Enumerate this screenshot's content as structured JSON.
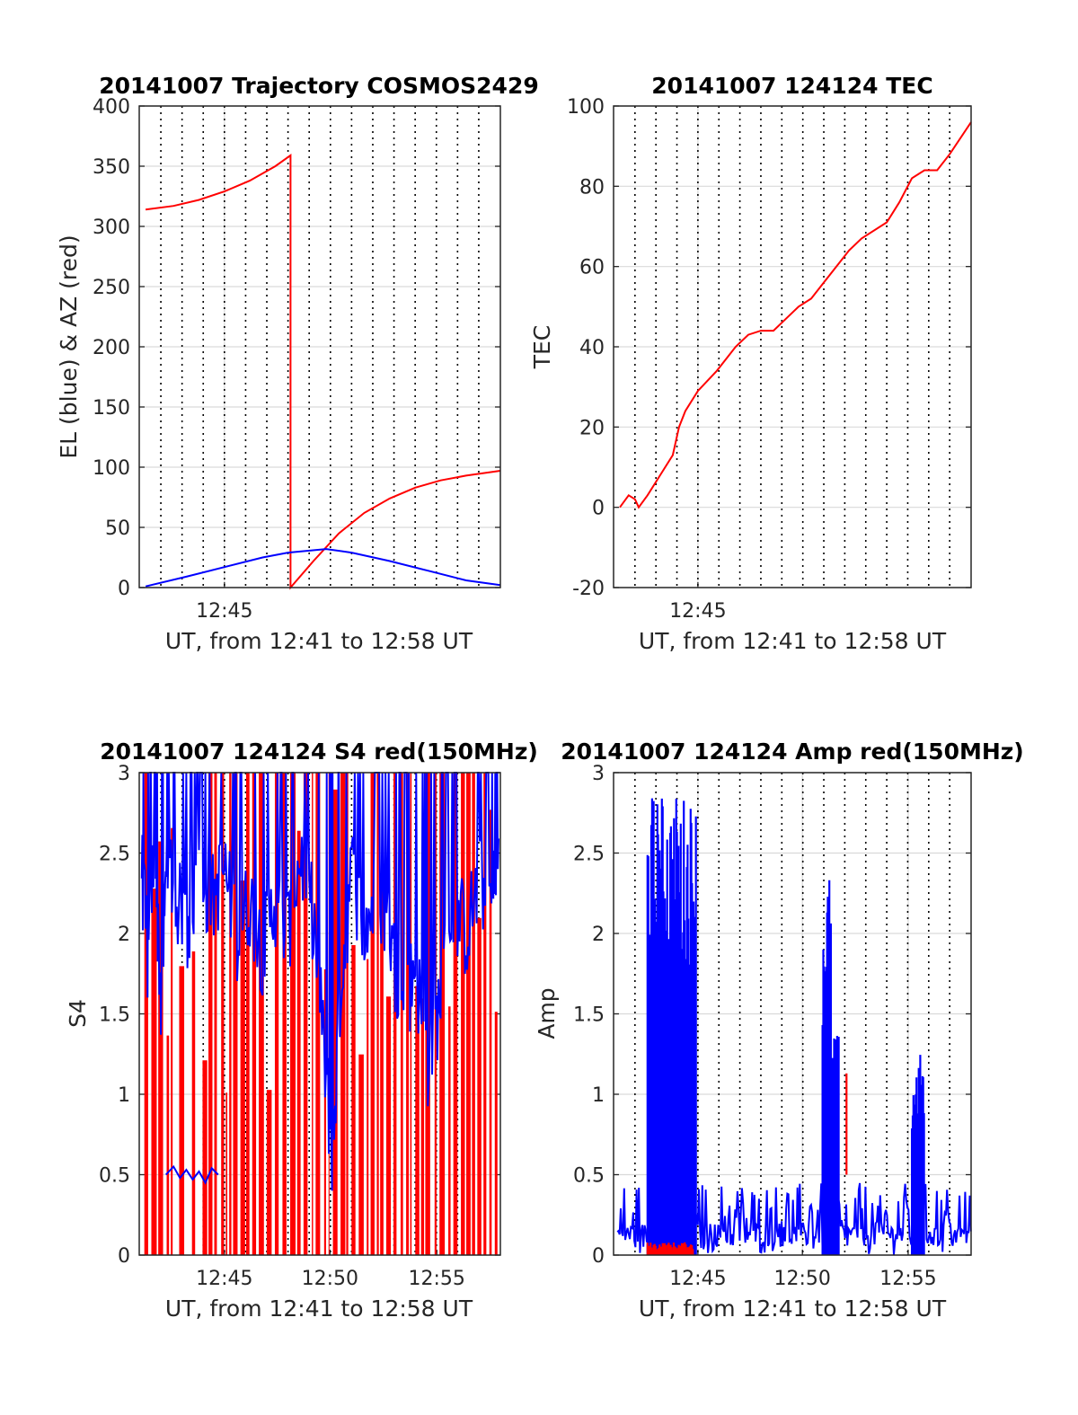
{
  "colors": {
    "red": "#ff0000",
    "blue": "#0000ff",
    "grid": "#d9d9d9",
    "axis": "#262626",
    "vline": "#000000"
  },
  "chart_data": [
    {
      "type": "line",
      "title": "20141007 Trajectory COSMOS2429",
      "ylabel": "EL (blue) & AZ (red)",
      "xlabel": "UT, from 12:41 to 12:58 UT",
      "xlim": [
        12.683,
        12.967
      ],
      "ylim": [
        0,
        400
      ],
      "yticks": [
        "0",
        "50",
        "100",
        "150",
        "200",
        "250",
        "300",
        "350",
        "400"
      ],
      "xticks": [
        {
          "t": 12.75,
          "label": "12:45"
        }
      ],
      "grid": true,
      "series": [
        {
          "color": "red",
          "points": [
            [
              12.688,
              314
            ],
            [
              12.71,
              317
            ],
            [
              12.73,
              322
            ],
            [
              12.75,
              329
            ],
            [
              12.77,
              338
            ],
            [
              12.79,
              350
            ],
            [
              12.802,
              359
            ],
            [
              12.802,
              0
            ],
            [
              12.82,
              22
            ],
            [
              12.84,
              45
            ],
            [
              12.86,
              62
            ],
            [
              12.88,
              74
            ],
            [
              12.9,
              83
            ],
            [
              12.92,
              89
            ],
            [
              12.94,
              93
            ],
            [
              12.967,
              97
            ]
          ]
        },
        {
          "color": "blue",
          "points": [
            [
              12.688,
              1
            ],
            [
              12.72,
              9
            ],
            [
              12.75,
              17
            ],
            [
              12.78,
              25
            ],
            [
              12.8,
              29
            ],
            [
              12.83,
              32
            ],
            [
              12.85,
              29
            ],
            [
              12.88,
              22
            ],
            [
              12.91,
              14
            ],
            [
              12.94,
              6
            ],
            [
              12.967,
              2
            ]
          ]
        }
      ]
    },
    {
      "type": "line",
      "title": "20141007 124124 TEC",
      "ylabel": "TEC",
      "xlabel": "UT, from 12:41 to 12:58 UT",
      "xlim": [
        12.683,
        12.967
      ],
      "ylim": [
        -20,
        100
      ],
      "yticks": [
        "-20",
        "0",
        "20",
        "40",
        "60",
        "80",
        "100"
      ],
      "xticks": [
        {
          "t": 12.75,
          "label": "12:45"
        }
      ],
      "grid": true,
      "series": [
        {
          "color": "red",
          "points": [
            [
              12.688,
              0
            ],
            [
              12.695,
              3
            ],
            [
              12.7,
              2
            ],
            [
              12.703,
              0
            ],
            [
              12.71,
              3
            ],
            [
              12.72,
              8
            ],
            [
              12.73,
              13
            ],
            [
              12.735,
              20
            ],
            [
              12.74,
              24
            ],
            [
              12.75,
              29
            ],
            [
              12.765,
              34
            ],
            [
              12.78,
              40
            ],
            [
              12.79,
              43
            ],
            [
              12.8,
              44
            ],
            [
              12.81,
              44
            ],
            [
              12.82,
              47
            ],
            [
              12.83,
              50
            ],
            [
              12.84,
              52
            ],
            [
              12.85,
              56
            ],
            [
              12.86,
              60
            ],
            [
              12.87,
              64
            ],
            [
              12.88,
              67
            ],
            [
              12.9,
              71
            ],
            [
              12.91,
              76
            ],
            [
              12.92,
              82
            ],
            [
              12.93,
              84
            ],
            [
              12.94,
              84
            ],
            [
              12.95,
              88
            ],
            [
              12.967,
              96
            ]
          ]
        }
      ]
    },
    {
      "type": "line",
      "title": "20141007 124124 S4 red(150MHz)",
      "ylabel": "S4",
      "xlabel": "UT, from 12:41 to 12:58 UT",
      "xlim": [
        12.683,
        12.967
      ],
      "ylim": [
        0,
        3
      ],
      "yticks": [
        "0",
        "0.5",
        "1",
        "1.5",
        "2",
        "2.5",
        "3"
      ],
      "xticks": [
        {
          "t": 12.75,
          "label": "12:45"
        },
        {
          "t": 12.833,
          "label": "12:50"
        },
        {
          "t": 12.917,
          "label": "12:55"
        }
      ],
      "grid": true,
      "series": [
        {
          "color": "red",
          "style": "red_fill",
          "points": [
            [
              12.69,
              3
            ],
            [
              12.7,
              0
            ],
            [
              12.71,
              3
            ],
            [
              12.72,
              0
            ],
            [
              12.73,
              3
            ],
            [
              12.74,
              0
            ],
            [
              12.75,
              3
            ],
            [
              12.76,
              1.8
            ],
            [
              12.77,
              3
            ],
            [
              12.78,
              0
            ],
            [
              12.79,
              3
            ],
            [
              12.8,
              2
            ],
            [
              12.81,
              3
            ],
            [
              12.82,
              1
            ],
            [
              12.83,
              3
            ],
            [
              12.84,
              2
            ],
            [
              12.85,
              3
            ],
            [
              12.86,
              0.5
            ],
            [
              12.87,
              3
            ],
            [
              12.88,
              2
            ],
            [
              12.89,
              3
            ],
            [
              12.9,
              1
            ],
            [
              12.91,
              3
            ],
            [
              12.92,
              2
            ],
            [
              12.93,
              3
            ],
            [
              12.94,
              1
            ],
            [
              12.95,
              3
            ],
            [
              12.96,
              2
            ]
          ]
        },
        {
          "color": "blue",
          "style": "blue_s4",
          "points": [
            [
              12.685,
              2.4
            ],
            [
              12.69,
              1.8
            ],
            [
              12.695,
              2.6
            ],
            [
              12.7,
              1.6
            ],
            [
              12.705,
              2.5
            ],
            [
              12.71,
              2.3
            ],
            [
              12.72,
              2.0
            ],
            [
              12.73,
              2.4
            ],
            [
              12.74,
              2.2
            ],
            [
              12.75,
              2.4
            ],
            [
              12.76,
              2.0
            ],
            [
              12.77,
              2.2
            ],
            [
              12.78,
              1.9
            ],
            [
              12.79,
              2.2
            ],
            [
              12.8,
              2.0
            ],
            [
              12.81,
              2.5
            ],
            [
              12.82,
              2.1
            ],
            [
              12.83,
              1.1
            ],
            [
              12.835,
              0.6
            ],
            [
              12.84,
              1.5
            ],
            [
              12.85,
              2.4
            ],
            [
              12.86,
              2.0
            ],
            [
              12.87,
              2.3
            ],
            [
              12.88,
              2.0
            ],
            [
              12.89,
              1.5
            ],
            [
              12.9,
              1.8
            ],
            [
              12.91,
              1.2
            ],
            [
              12.92,
              1.6
            ],
            [
              12.93,
              2.2
            ],
            [
              12.94,
              2.0
            ],
            [
              12.95,
              2.3
            ],
            [
              12.96,
              2.2
            ],
            [
              12.966,
              2.4
            ]
          ]
        },
        {
          "color": "blue",
          "points": [
            [
              12.704,
              0.5
            ],
            [
              12.71,
              0.55
            ],
            [
              12.715,
              0.48
            ],
            [
              12.72,
              0.53
            ],
            [
              12.725,
              0.47
            ],
            [
              12.73,
              0.52
            ],
            [
              12.735,
              0.45
            ],
            [
              12.74,
              0.54
            ],
            [
              12.745,
              0.5
            ]
          ]
        }
      ]
    },
    {
      "type": "line",
      "title": "20141007 124124 Amp red(150MHz)",
      "ylabel": "Amp",
      "xlabel": "UT, from 12:41 to 12:58 UT",
      "xlim": [
        12.683,
        12.967
      ],
      "ylim": [
        0,
        3
      ],
      "yticks": [
        "0",
        "0.5",
        "1",
        "1.5",
        "2",
        "2.5",
        "3"
      ],
      "xticks": [
        {
          "t": 12.75,
          "label": "12:45"
        },
        {
          "t": 12.833,
          "label": "12:50"
        },
        {
          "t": 12.917,
          "label": "12:55"
        }
      ],
      "grid": true,
      "series": [
        {
          "color": "blue",
          "style": "blue_amp_base",
          "points": [
            [
              12.686,
              0.4
            ],
            [
              12.967,
              0.35
            ]
          ]
        },
        {
          "color": "blue",
          "style": "blue_spikes",
          "points": [
            [
              12.71,
              2.3
            ],
            [
              12.715,
              2.4
            ],
            [
              12.72,
              2.5
            ],
            [
              12.725,
              2.9
            ],
            [
              12.73,
              2.6
            ],
            [
              12.735,
              2.8
            ],
            [
              12.74,
              2.5
            ],
            [
              12.745,
              2.9
            ],
            [
              12.748,
              2.6
            ],
            [
              12.85,
              2.08
            ],
            [
              12.855,
              1.2
            ],
            [
              12.86,
              1.1
            ],
            [
              12.87,
              0.55
            ],
            [
              12.92,
              1.15
            ],
            [
              12.925,
              1.25
            ],
            [
              12.93,
              0.9
            ]
          ]
        },
        {
          "color": "red",
          "points": [
            [
              12.71,
              0.05
            ],
            [
              12.72,
              0.05
            ],
            [
              12.73,
              0.06
            ],
            [
              12.74,
              0.04
            ],
            [
              12.868,
              1.13
            ]
          ]
        }
      ]
    }
  ]
}
